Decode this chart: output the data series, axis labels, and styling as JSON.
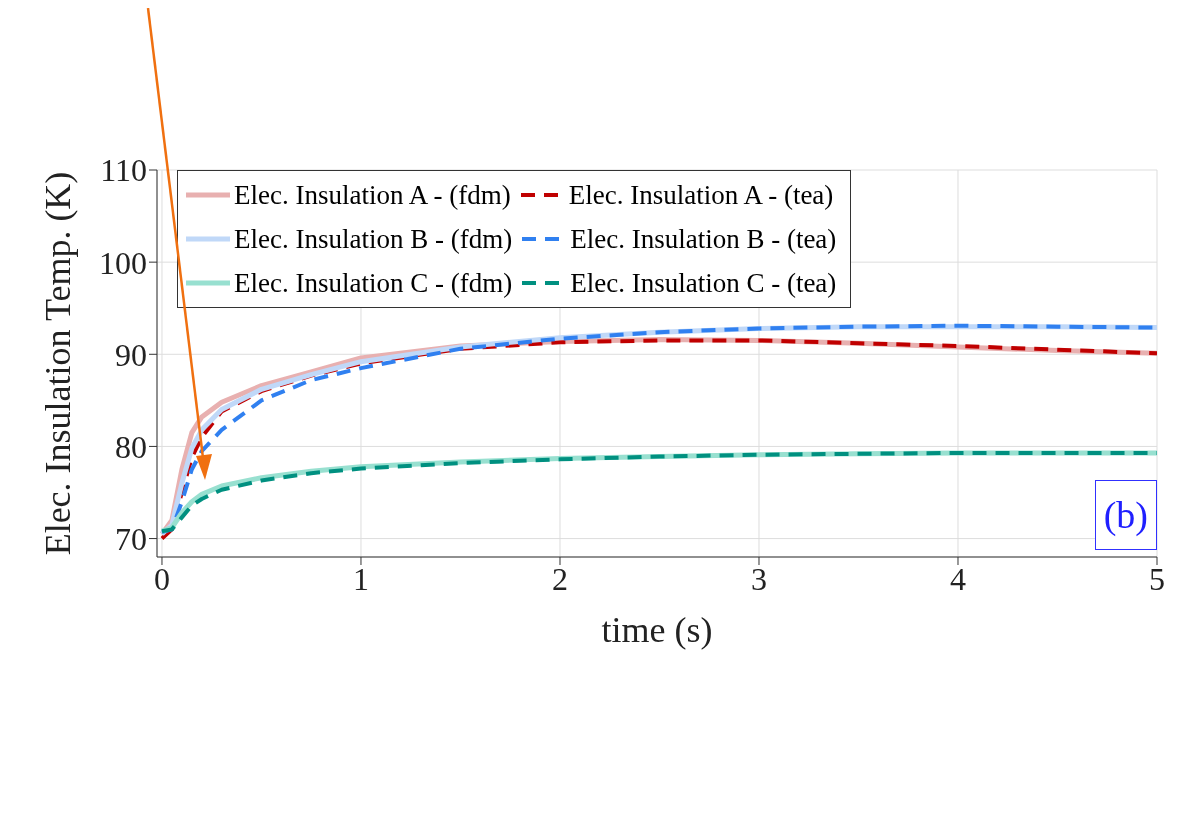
{
  "chart_data": {
    "type": "line",
    "xlabel": "time (s)",
    "ylabel": "Elec. Insulation Temp. (K)",
    "x": [
      0,
      0.05,
      0.1,
      0.15,
      0.2,
      0.3,
      0.5,
      0.75,
      1,
      1.5,
      2,
      2.5,
      3,
      3.5,
      4,
      4.5,
      5
    ],
    "series": [
      {
        "name": "Elec. Insulation A - (fdm)",
        "color": "#e8b0b0",
        "line_style": "solid",
        "values": [
          70.5,
          72,
          77.5,
          81.5,
          83.2,
          84.8,
          86.6,
          88.1,
          89.6,
          90.9,
          91.4,
          91.6,
          91.5,
          91.2,
          90.8,
          90.4,
          90.1
        ]
      },
      {
        "name": "Elec. Insulation A - (tea)",
        "color": "#c00000",
        "line_style": "dashed",
        "values": [
          70,
          71,
          75,
          78.8,
          81,
          83.8,
          86,
          87.7,
          89,
          90.6,
          91.3,
          91.5,
          91.5,
          91.2,
          90.9,
          90.5,
          90.1
        ]
      },
      {
        "name": "Elec. Insulation B - (fdm)",
        "color": "#c0d8f8",
        "line_style": "solid",
        "values": [
          70.5,
          71.5,
          76,
          79.8,
          81.8,
          84,
          86.2,
          87.8,
          89.2,
          90.8,
          91.8,
          92.4,
          92.8,
          93,
          93,
          93,
          92.9
        ]
      },
      {
        "name": "Elec. Insulation B - (tea)",
        "color": "#3080f0",
        "line_style": "dashed",
        "values": [
          70.7,
          71,
          74,
          77.5,
          79.5,
          81.8,
          85,
          87.2,
          88.5,
          90.6,
          91.7,
          92.4,
          92.8,
          93,
          93.1,
          93,
          92.9
        ]
      },
      {
        "name": "Elec. Insulation C - (fdm)",
        "color": "#98e0d0",
        "line_style": "solid",
        "values": [
          70.8,
          71.2,
          72.8,
          74,
          74.8,
          75.7,
          76.6,
          77.3,
          77.8,
          78.3,
          78.7,
          78.9,
          79.1,
          79.2,
          79.3,
          79.3,
          79.3
        ]
      },
      {
        "name": "Elec. Insulation C - (tea)",
        "color": "#009080",
        "line_style": "dashed",
        "values": [
          70.8,
          71,
          72.3,
          73.6,
          74.3,
          75.3,
          76.3,
          77.1,
          77.6,
          78.2,
          78.6,
          78.9,
          79.1,
          79.2,
          79.3,
          79.3,
          79.3
        ]
      }
    ],
    "xlim": [
      -0.025,
      5
    ],
    "xticks": [
      0,
      1,
      2,
      3,
      4,
      5
    ],
    "ylim": [
      68,
      110
    ],
    "yticks": [
      70,
      80,
      90,
      100,
      110
    ],
    "grid": true,
    "legend": "top",
    "annotations": [
      "(b)"
    ]
  }
}
